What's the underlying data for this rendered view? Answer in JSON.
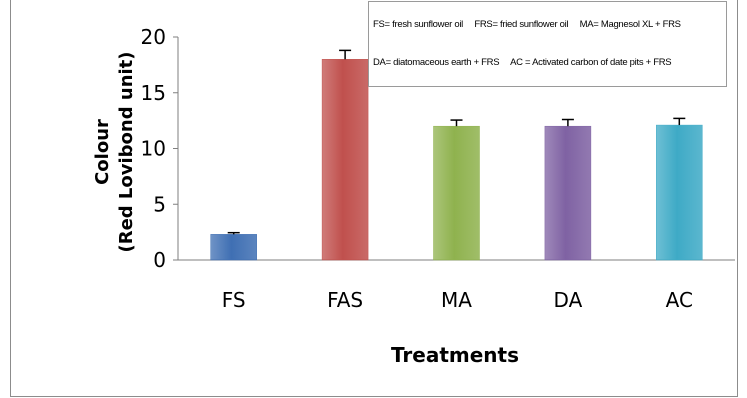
{
  "chart_data": {
    "type": "bar",
    "categories": [
      "FS",
      "FAS",
      "MA",
      "DA",
      "AC"
    ],
    "values": [
      2.3,
      18.0,
      12.0,
      12.0,
      12.1
    ],
    "errors": [
      0.15,
      0.8,
      0.55,
      0.6,
      0.6
    ],
    "colors": [
      "#3f6fb3",
      "#c0504d",
      "#8fb24e",
      "#7f62a3",
      "#3eaac6"
    ],
    "ylabel_line1": "Colour",
    "ylabel_line2": "(Red Lovibond unit)",
    "xlabel": "Treatments",
    "ylim": [
      0,
      20
    ],
    "yticks": [
      "0",
      "5",
      "10",
      "15",
      "20"
    ],
    "legend_row1": [
      "FS= fresh sunflower oil",
      "FRS= fried sunflower oil",
      "MA= Magnesol XL + FRS"
    ],
    "legend_row2": [
      "DA= diatomaceous earth + FRS",
      "AC = Activated carbon of date pits + FRS"
    ]
  }
}
